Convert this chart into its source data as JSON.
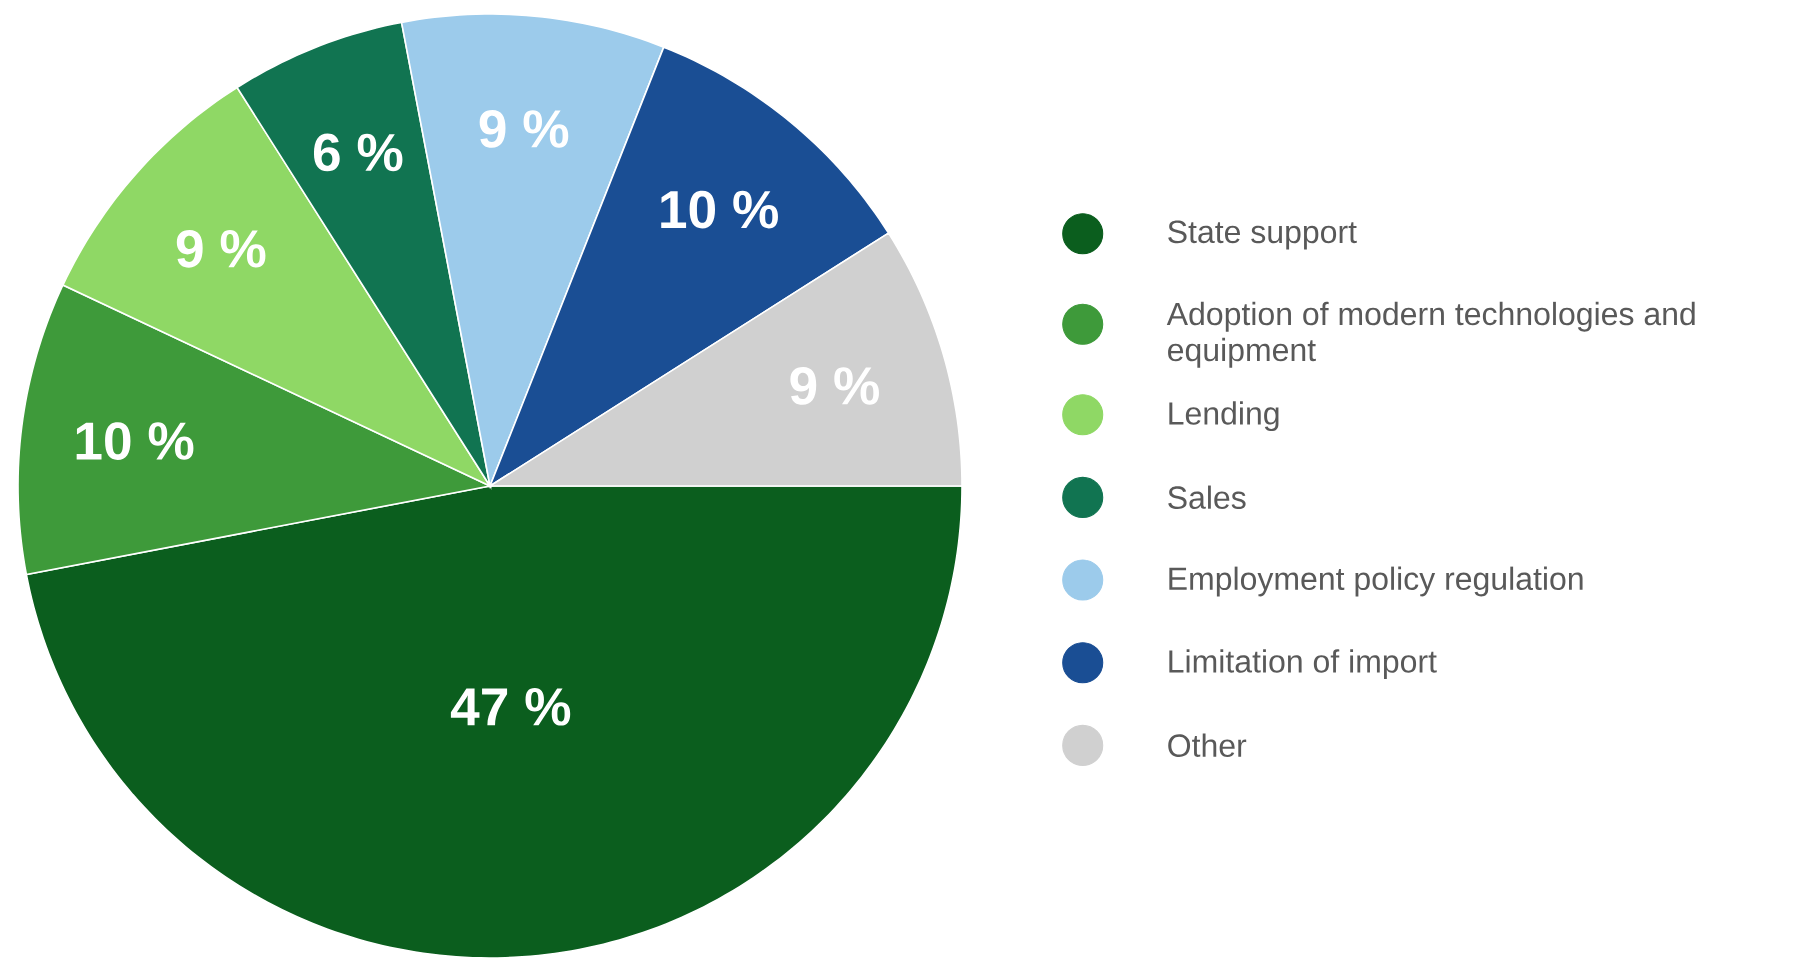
{
  "chart_data": {
    "type": "pie",
    "categories": [
      "State support",
      "Adoption of modern technologies and equipment",
      "Lending",
      "Sales",
      "Employment policy regulation",
      "Limitation of import",
      "Other"
    ],
    "values": [
      47,
      10,
      9,
      6,
      9,
      10,
      9
    ],
    "value_labels": [
      "47 %",
      "10 %",
      "9 %",
      "6 %",
      "9 %",
      "10 %",
      "9 %"
    ],
    "colors": [
      "#0b5e1e",
      "#3e9a3a",
      "#8fd865",
      "#117451",
      "#9ccbeb",
      "#1a4e94",
      "#d0d0d0"
    ],
    "legend": "right"
  }
}
